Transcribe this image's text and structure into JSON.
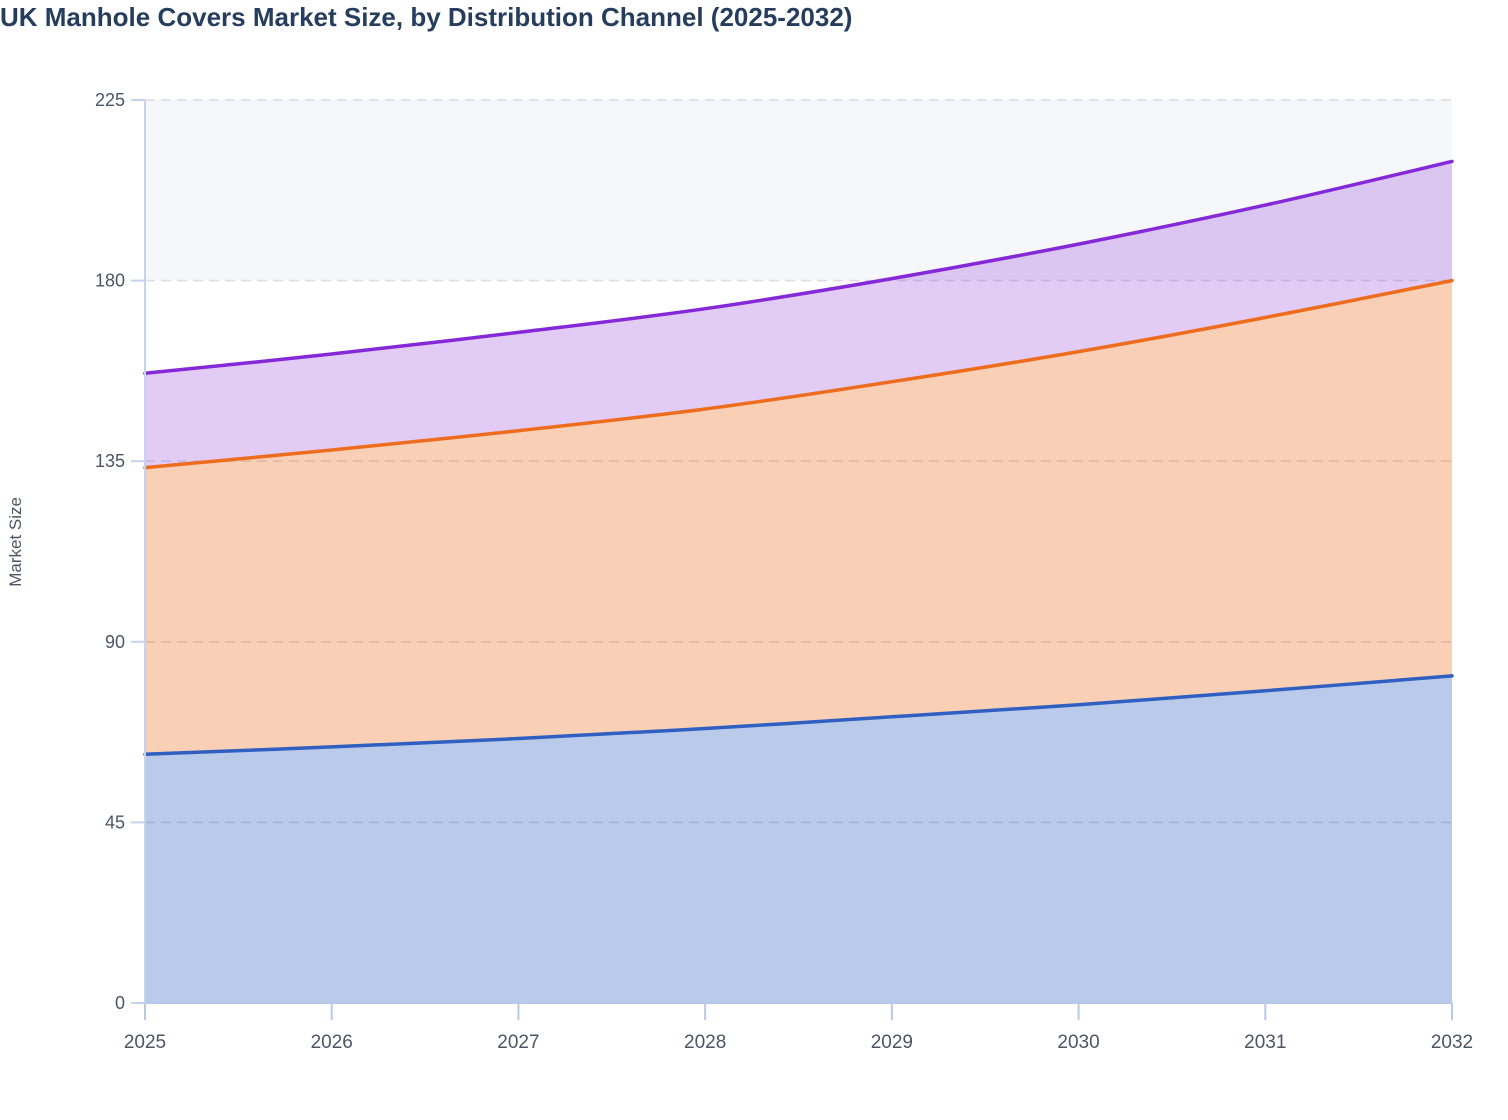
{
  "page": {
    "title": "UK Manhole Covers Market Size, by Distribution Channel (2025-2032)"
  },
  "chart_data": {
    "type": "area",
    "stacked": true,
    "title": "UK Manhole Covers Market Size, by Distribution Channel (2025-2032)",
    "xlabel": "",
    "ylabel": "Market Size",
    "x": [
      "2025",
      "2026",
      "2027",
      "2028",
      "2029",
      "2030",
      "2031",
      "2032"
    ],
    "ylim": [
      0,
      225
    ],
    "y_ticks": [
      0,
      45,
      90,
      135,
      180,
      225
    ],
    "grid": "horizontal-dashed",
    "legend": "none",
    "plot_band": {
      "from": 180,
      "to": 225,
      "color": "#f6f7fa"
    },
    "series": [
      {
        "name": "Bottom series (blue)",
        "line_color": "#2f5fc1",
        "fill_color": "rgba(47,95,193,0.33)",
        "values": [
          62,
          63.8,
          65.9,
          68.4,
          71.3,
          74.3,
          77.8,
          81.5
        ]
      },
      {
        "name": "Middle series (orange)",
        "line_color": "#ee6c1d",
        "fill_color": "rgba(238,108,29,0.33)",
        "values": [
          71.4,
          74.0,
          76.7,
          79.6,
          83.5,
          88.0,
          93.0,
          98.5
        ]
      },
      {
        "name": "Top series (purple)",
        "line_color": "#8428d8",
        "fill_color": "rgba(132,40,216,0.24)",
        "values": [
          23.5,
          23.9,
          24.5,
          25.0,
          25.7,
          26.8,
          28.0,
          29.7
        ]
      }
    ],
    "stack_totals": [
      156.9,
      161.7,
      167.1,
      173.0,
      180.5,
      189.1,
      198.8,
      209.7
    ]
  },
  "style": {
    "title_color": "#273d5e",
    "tick_label_color": "#4c5565",
    "axis_title_color": "#4d5663",
    "y_axis_line_color": "#c5d3ee",
    "x_axis_line_color": "#b9c7e8",
    "gridline_color": "#dcdce2",
    "background_color": "#ffffff"
  }
}
